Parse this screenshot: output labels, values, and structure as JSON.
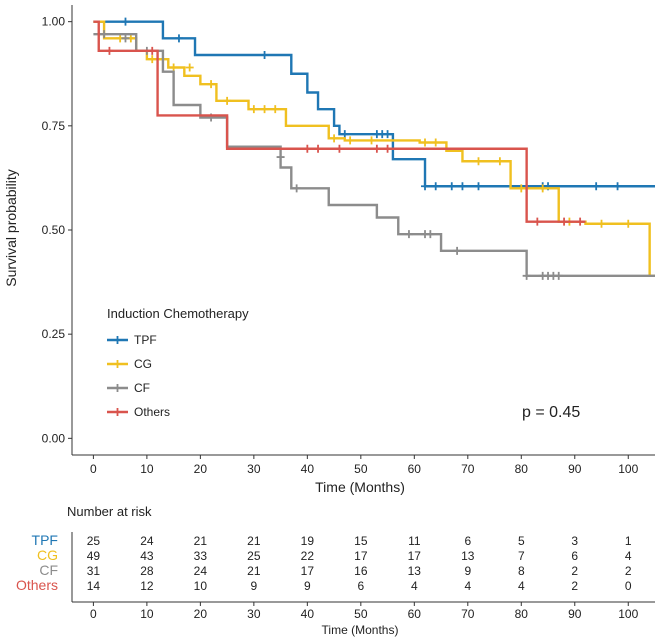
{
  "chart_data": {
    "type": "line",
    "title": "",
    "xlabel": "Time (Months)",
    "ylabel": "Survival probability",
    "xlim": [
      -4,
      105
    ],
    "ylim": [
      -0.04,
      1.04
    ],
    "x_ticks": [
      0,
      10,
      20,
      30,
      40,
      50,
      60,
      70,
      80,
      90,
      100
    ],
    "x_tick_labels": [
      "0",
      "10",
      "20",
      "30",
      "40",
      "50",
      "60",
      "70",
      "80",
      "90",
      "100"
    ],
    "y_ticks": [
      0,
      0.25,
      0.5,
      0.75,
      1.0
    ],
    "y_tick_labels": [
      "0.00",
      "0.25",
      "0.50",
      "0.75",
      "1.00"
    ],
    "grid": false,
    "legend": {
      "title": "Induction Chemotherapy",
      "position": "bottom-left",
      "entries": [
        "TPF",
        "CG",
        "CF",
        "Others"
      ]
    },
    "annotation": "p = 0.45",
    "series": [
      {
        "name": "TPF",
        "color": "#1f77b4",
        "steps": [
          [
            0,
            1.0
          ],
          [
            13,
            0.96
          ],
          [
            19,
            0.92
          ],
          [
            37,
            0.875
          ],
          [
            40,
            0.83
          ],
          [
            42,
            0.79
          ],
          [
            45,
            0.75
          ],
          [
            46,
            0.73
          ],
          [
            56,
            0.67
          ],
          [
            62,
            0.605
          ],
          [
            105,
            0.605
          ]
        ],
        "censors": [
          [
            6,
            1.0
          ],
          [
            16,
            0.96
          ],
          [
            32,
            0.92
          ],
          [
            47,
            0.73
          ],
          [
            53,
            0.73
          ],
          [
            54,
            0.73
          ],
          [
            55,
            0.73
          ],
          [
            62,
            0.605
          ],
          [
            64,
            0.605
          ],
          [
            67,
            0.605
          ],
          [
            69,
            0.605
          ],
          [
            72,
            0.605
          ],
          [
            84,
            0.605
          ],
          [
            85,
            0.605
          ],
          [
            94,
            0.605
          ],
          [
            98,
            0.605
          ]
        ]
      },
      {
        "name": "CG",
        "color": "#f0c020",
        "steps": [
          [
            0,
            1.0
          ],
          [
            2,
            0.96
          ],
          [
            8,
            0.93
          ],
          [
            10,
            0.91
          ],
          [
            14,
            0.89
          ],
          [
            17,
            0.87
          ],
          [
            20,
            0.85
          ],
          [
            23,
            0.81
          ],
          [
            29,
            0.79
          ],
          [
            36,
            0.75
          ],
          [
            44,
            0.72
          ],
          [
            47,
            0.715
          ],
          [
            61,
            0.71
          ],
          [
            66,
            0.69
          ],
          [
            69,
            0.665
          ],
          [
            78,
            0.6
          ],
          [
            87,
            0.52
          ],
          [
            92,
            0.515
          ],
          [
            104,
            0.39
          ],
          [
            105,
            0.39
          ]
        ],
        "censors": [
          [
            5,
            0.96
          ],
          [
            7,
            0.96
          ],
          [
            11,
            0.91
          ],
          [
            13,
            0.91
          ],
          [
            15,
            0.89
          ],
          [
            18,
            0.89
          ],
          [
            22,
            0.85
          ],
          [
            25,
            0.81
          ],
          [
            30,
            0.79
          ],
          [
            32,
            0.79
          ],
          [
            34,
            0.79
          ],
          [
            45,
            0.72
          ],
          [
            48,
            0.715
          ],
          [
            52,
            0.715
          ],
          [
            62,
            0.71
          ],
          [
            64,
            0.71
          ],
          [
            72,
            0.665
          ],
          [
            76,
            0.665
          ],
          [
            80,
            0.6
          ],
          [
            84,
            0.6
          ],
          [
            89,
            0.52
          ],
          [
            95,
            0.515
          ],
          [
            100,
            0.515
          ]
        ]
      },
      {
        "name": "CF",
        "color": "#8c8c8c",
        "steps": [
          [
            0,
            0.97
          ],
          [
            8,
            0.93
          ],
          [
            13,
            0.88
          ],
          [
            15,
            0.8
          ],
          [
            20,
            0.77
          ],
          [
            25,
            0.7
          ],
          [
            35,
            0.65
          ],
          [
            37,
            0.6
          ],
          [
            44,
            0.56
          ],
          [
            53,
            0.53
          ],
          [
            57,
            0.49
          ],
          [
            65,
            0.45
          ],
          [
            81,
            0.39
          ],
          [
            105,
            0.39
          ]
        ],
        "censors": [
          [
            2,
            0.97
          ],
          [
            6,
            0.96
          ],
          [
            10,
            0.93
          ],
          [
            22,
            0.77
          ],
          [
            35,
            0.675
          ],
          [
            38,
            0.6
          ],
          [
            59,
            0.49
          ],
          [
            62,
            0.49
          ],
          [
            63,
            0.49
          ],
          [
            68,
            0.45
          ],
          [
            81,
            0.39
          ],
          [
            84,
            0.39
          ],
          [
            85,
            0.39
          ],
          [
            86,
            0.39
          ],
          [
            87,
            0.39
          ]
        ]
      },
      {
        "name": "Others",
        "color": "#d9544d",
        "steps": [
          [
            0,
            1.0
          ],
          [
            1,
            0.93
          ],
          [
            12,
            0.775
          ],
          [
            25,
            0.695
          ],
          [
            81,
            0.52
          ],
          [
            92,
            0.52
          ]
        ],
        "censors": [
          [
            3,
            0.93
          ],
          [
            11,
            0.93
          ],
          [
            40,
            0.695
          ],
          [
            42,
            0.695
          ],
          [
            46,
            0.695
          ],
          [
            53,
            0.695
          ],
          [
            55,
            0.695
          ],
          [
            83,
            0.52
          ],
          [
            88,
            0.52
          ],
          [
            91,
            0.52
          ]
        ]
      }
    ],
    "risk_table": {
      "title": "Number at risk",
      "xlabel": "Time (Months)",
      "times": [
        "0",
        "10",
        "20",
        "30",
        "40",
        "50",
        "60",
        "70",
        "80",
        "90",
        "100"
      ],
      "rows": [
        {
          "name": "TPF",
          "color": "#1f77b4",
          "values": [
            "25",
            "24",
            "21",
            "21",
            "19",
            "15",
            "11",
            "6",
            "5",
            "3",
            "1"
          ]
        },
        {
          "name": "CG",
          "color": "#f0c020",
          "values": [
            "49",
            "43",
            "33",
            "25",
            "22",
            "17",
            "17",
            "13",
            "7",
            "6",
            "4"
          ]
        },
        {
          "name": "CF",
          "color": "#8c8c8c",
          "values": [
            "31",
            "28",
            "24",
            "21",
            "17",
            "16",
            "13",
            "9",
            "8",
            "2",
            "2"
          ]
        },
        {
          "name": "Others",
          "color": "#d9544d",
          "values": [
            "14",
            "12",
            "10",
            "9",
            "9",
            "6",
            "4",
            "4",
            "4",
            "2",
            "0"
          ]
        }
      ]
    }
  }
}
